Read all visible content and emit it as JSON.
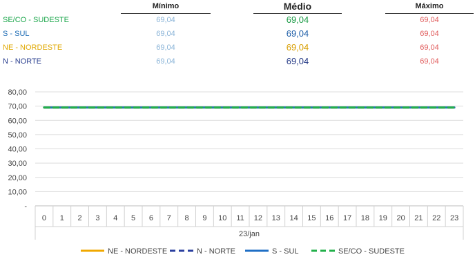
{
  "summary": {
    "headers": {
      "min": "Mínimo",
      "avg": "Médio",
      "max": "Máximo"
    },
    "rows": [
      {
        "region": "SE/CO - SUDESTE",
        "min": "69,04",
        "avg": "69,04",
        "max": "69,04",
        "color": "#1aa64a",
        "avg_color": "#1a9a45"
      },
      {
        "region": "S - SUL",
        "min": "69,04",
        "avg": "69,04",
        "max": "69,04",
        "color": "#1f6db5",
        "avg_color": "#1f5fa8"
      },
      {
        "region": "NE - NORDESTE",
        "min": "69,04",
        "avg": "69,04",
        "max": "69,04",
        "color": "#e0a800",
        "avg_color": "#d89e00"
      },
      {
        "region": "N - NORTE",
        "min": "69,04",
        "avg": "69,04",
        "max": "69,04",
        "color": "#2a3f8f",
        "avg_color": "#253a86"
      }
    ],
    "min_color": "#8ab4d8",
    "max_color": "#e05a5a"
  },
  "chart_data": {
    "type": "line",
    "x": [
      0,
      1,
      2,
      3,
      4,
      5,
      6,
      7,
      8,
      9,
      10,
      11,
      12,
      13,
      14,
      15,
      16,
      17,
      18,
      19,
      20,
      21,
      22,
      23
    ],
    "xlabel": "23/jan",
    "ylim": [
      0,
      80
    ],
    "yticks": [
      "-",
      "10,00",
      "20,00",
      "30,00",
      "40,00",
      "50,00",
      "60,00",
      "70,00",
      "80,00"
    ],
    "grid": true,
    "legend_position": "bottom",
    "series": [
      {
        "name": "NE - NORDESTE",
        "color": "#f0a800",
        "dash": "solid",
        "values": [
          69.04,
          69.04,
          69.04,
          69.04,
          69.04,
          69.04,
          69.04,
          69.04,
          69.04,
          69.04,
          69.04,
          69.04,
          69.04,
          69.04,
          69.04,
          69.04,
          69.04,
          69.04,
          69.04,
          69.04,
          69.04,
          69.04,
          69.04,
          69.04
        ]
      },
      {
        "name": "N - NORTE",
        "color": "#2a3f9f",
        "dash": "dashed",
        "values": [
          69.04,
          69.04,
          69.04,
          69.04,
          69.04,
          69.04,
          69.04,
          69.04,
          69.04,
          69.04,
          69.04,
          69.04,
          69.04,
          69.04,
          69.04,
          69.04,
          69.04,
          69.04,
          69.04,
          69.04,
          69.04,
          69.04,
          69.04,
          69.04
        ]
      },
      {
        "name": "S - SUL",
        "color": "#1f6fc5",
        "dash": "solid",
        "values": [
          69.04,
          69.04,
          69.04,
          69.04,
          69.04,
          69.04,
          69.04,
          69.04,
          69.04,
          69.04,
          69.04,
          69.04,
          69.04,
          69.04,
          69.04,
          69.04,
          69.04,
          69.04,
          69.04,
          69.04,
          69.04,
          69.04,
          69.04,
          69.04
        ]
      },
      {
        "name": "SE/CO - SUDESTE",
        "color": "#22b04a",
        "dash": "dashed",
        "values": [
          69.04,
          69.04,
          69.04,
          69.04,
          69.04,
          69.04,
          69.04,
          69.04,
          69.04,
          69.04,
          69.04,
          69.04,
          69.04,
          69.04,
          69.04,
          69.04,
          69.04,
          69.04,
          69.04,
          69.04,
          69.04,
          69.04,
          69.04,
          69.04
        ]
      }
    ]
  }
}
